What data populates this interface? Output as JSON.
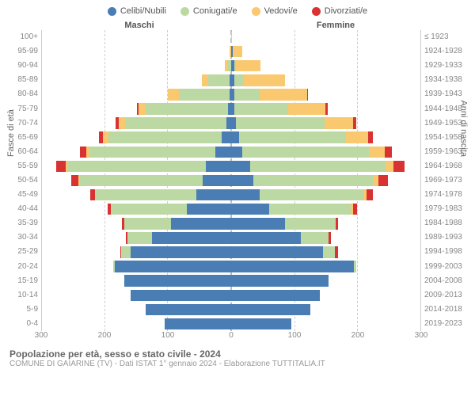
{
  "legend": [
    {
      "label": "Celibi/Nubili",
      "color": "#4a7db4"
    },
    {
      "label": "Coniugati/e",
      "color": "#bdd9a3"
    },
    {
      "label": "Vedovi/e",
      "color": "#f9c86f"
    },
    {
      "label": "Divorziati/e",
      "color": "#d93232"
    }
  ],
  "headers": {
    "male": "Maschi",
    "female": "Femmine"
  },
  "axis_labels": {
    "left": "Fasce di età",
    "right": "Anni di nascita"
  },
  "x_max": 300,
  "x_ticks": [
    300,
    200,
    100,
    0,
    100,
    200,
    300
  ],
  "age_bands": [
    "100+",
    "95-99",
    "90-94",
    "85-89",
    "80-84",
    "75-79",
    "70-74",
    "65-69",
    "60-64",
    "55-59",
    "50-54",
    "45-49",
    "40-44",
    "35-39",
    "30-34",
    "25-29",
    "20-24",
    "15-19",
    "10-14",
    "5-9",
    "0-4"
  ],
  "birth_years": [
    "≤ 1923",
    "1924-1928",
    "1929-1933",
    "1934-1938",
    "1939-1943",
    "1944-1948",
    "1949-1953",
    "1954-1958",
    "1959-1963",
    "1964-1968",
    "1969-1973",
    "1974-1978",
    "1979-1983",
    "1984-1988",
    "1989-1993",
    "1994-1998",
    "1999-2003",
    "2004-2008",
    "2009-2013",
    "2014-2018",
    "2019-2023"
  ],
  "rows": [
    {
      "m": [
        0,
        0,
        0,
        0
      ],
      "f": [
        0,
        0,
        1,
        0
      ]
    },
    {
      "m": [
        0,
        0,
        3,
        0
      ],
      "f": [
        2,
        0,
        15,
        0
      ]
    },
    {
      "m": [
        0,
        5,
        5,
        0
      ],
      "f": [
        5,
        2,
        40,
        0
      ]
    },
    {
      "m": [
        2,
        35,
        10,
        0
      ],
      "f": [
        5,
        15,
        65,
        0
      ]
    },
    {
      "m": [
        3,
        80,
        18,
        0
      ],
      "f": [
        5,
        40,
        75,
        2
      ]
    },
    {
      "m": [
        5,
        130,
        12,
        2
      ],
      "f": [
        5,
        85,
        60,
        3
      ]
    },
    {
      "m": [
        8,
        160,
        10,
        5
      ],
      "f": [
        8,
        140,
        45,
        5
      ]
    },
    {
      "m": [
        15,
        180,
        8,
        7
      ],
      "f": [
        12,
        170,
        35,
        8
      ]
    },
    {
      "m": [
        25,
        200,
        5,
        10
      ],
      "f": [
        18,
        200,
        25,
        12
      ]
    },
    {
      "m": [
        40,
        220,
        3,
        15
      ],
      "f": [
        30,
        215,
        12,
        18
      ]
    },
    {
      "m": [
        45,
        195,
        2,
        12
      ],
      "f": [
        35,
        190,
        8,
        15
      ]
    },
    {
      "m": [
        55,
        160,
        1,
        8
      ],
      "f": [
        45,
        165,
        5,
        10
      ]
    },
    {
      "m": [
        70,
        120,
        1,
        5
      ],
      "f": [
        60,
        130,
        3,
        7
      ]
    },
    {
      "m": [
        95,
        75,
        0,
        3
      ],
      "f": [
        85,
        80,
        1,
        4
      ]
    },
    {
      "m": [
        125,
        40,
        0,
        2
      ],
      "f": [
        110,
        45,
        0,
        3
      ]
    },
    {
      "m": [
        160,
        15,
        0,
        1
      ],
      "f": [
        145,
        20,
        0,
        4
      ]
    },
    {
      "m": [
        185,
        2,
        0,
        0
      ],
      "f": [
        195,
        3,
        0,
        0
      ]
    },
    {
      "m": [
        170,
        0,
        0,
        0
      ],
      "f": [
        155,
        0,
        0,
        0
      ]
    },
    {
      "m": [
        160,
        0,
        0,
        0
      ],
      "f": [
        140,
        0,
        0,
        0
      ]
    },
    {
      "m": [
        135,
        0,
        0,
        0
      ],
      "f": [
        125,
        0,
        0,
        0
      ]
    },
    {
      "m": [
        105,
        0,
        0,
        0
      ],
      "f": [
        95,
        0,
        0,
        0
      ]
    }
  ],
  "footer": {
    "title": "Popolazione per età, sesso e stato civile - 2024",
    "sub": "COMUNE DI GAIARINE (TV) - Dati ISTAT 1° gennaio 2024 - Elaborazione TUTTITALIA.IT"
  },
  "colors": {
    "grid": "#cccccc",
    "bg": "#ffffff"
  }
}
